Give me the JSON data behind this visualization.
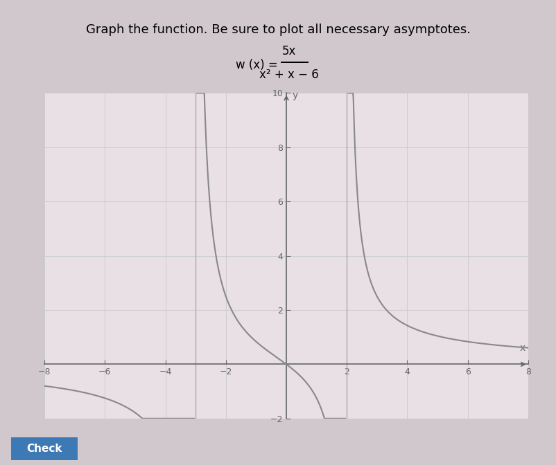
{
  "title": "Graph the function. Be sure to plot all necessary asymptotes.",
  "formula_text": "w(x) = 5x / (x² + x - 6)",
  "xlim": [
    -8,
    8
  ],
  "ylim": [
    -2,
    10
  ],
  "xasymptotes": [
    -3,
    2
  ],
  "yasymptote": 0,
  "curve_color": "#888888",
  "asymptote_color": "#aaaaaa",
  "background_color": "#e8e0e4",
  "grid_color": "#cccccc",
  "axis_color": "#666666",
  "tick_major": 2,
  "curve_lw": 1.5,
  "asymptote_lw": 1.0,
  "outer_bg": "#d0c8cc"
}
